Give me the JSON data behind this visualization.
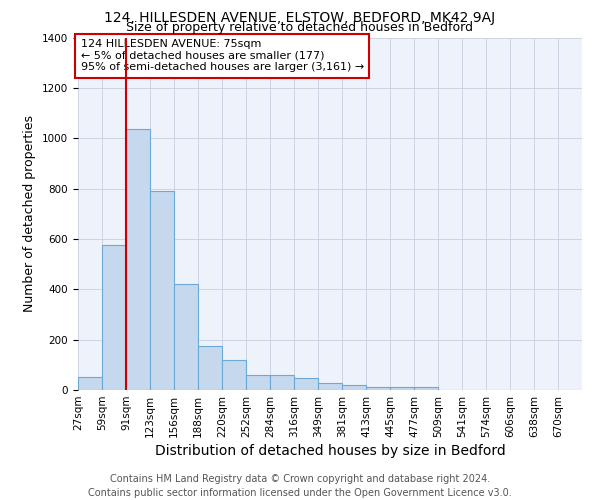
{
  "title1": "124, HILLESDEN AVENUE, ELSTOW, BEDFORD, MK42 9AJ",
  "title2": "Size of property relative to detached houses in Bedford",
  "xlabel": "Distribution of detached houses by size in Bedford",
  "ylabel": "Number of detached properties",
  "bar_values": [
    50,
    575,
    1035,
    790,
    420,
    175,
    120,
    60,
    60,
    47,
    27,
    20,
    13,
    10,
    10,
    0,
    0,
    0,
    0,
    0,
    0
  ],
  "bar_labels": [
    "27sqm",
    "59sqm",
    "91sqm",
    "123sqm",
    "156sqm",
    "188sqm",
    "220sqm",
    "252sqm",
    "284sqm",
    "316sqm",
    "349sqm",
    "381sqm",
    "413sqm",
    "445sqm",
    "477sqm",
    "509sqm",
    "541sqm",
    "574sqm",
    "606sqm",
    "638sqm",
    "670sqm"
  ],
  "bar_color": "#c5d8ed",
  "bar_edge_color": "#6aaad4",
  "bg_color": "#eef2fb",
  "grid_color": "#c8cfe0",
  "vline_color": "#cc0000",
  "annotation_text": "124 HILLESDEN AVENUE: 75sqm\n← 5% of detached houses are smaller (177)\n95% of semi-detached houses are larger (3,161) →",
  "annotation_box_color": "#cc0000",
  "ylim": [
    0,
    1400
  ],
  "footer": "Contains HM Land Registry data © Crown copyright and database right 2024.\nContains public sector information licensed under the Open Government Licence v3.0.",
  "title1_fontsize": 10,
  "title2_fontsize": 9,
  "xlabel_fontsize": 10,
  "ylabel_fontsize": 9,
  "tick_fontsize": 7.5,
  "footer_fontsize": 7,
  "ann_fontsize": 8
}
